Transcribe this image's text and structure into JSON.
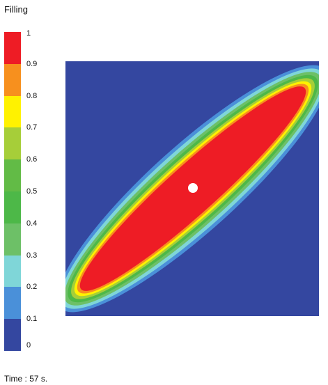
{
  "legend": {
    "title": "Filling",
    "levels": [
      {
        "label": "1",
        "color": "#ee1c25"
      },
      {
        "label": "0.9",
        "color": "#f7901e"
      },
      {
        "label": "0.8",
        "color": "#fff200"
      },
      {
        "label": "0.7",
        "color": "#a6ce39"
      },
      {
        "label": "0.6",
        "color": "#62bb46"
      },
      {
        "label": "0.5",
        "color": "#4db848"
      },
      {
        "label": "0.4",
        "color": "#6dc067"
      },
      {
        "label": "0.3",
        "color": "#7fd6d8"
      },
      {
        "label": "0.2",
        "color": "#4a90d9"
      },
      {
        "label": "0.1",
        "color": "#3447a0"
      },
      {
        "label": "0",
        "color": ""
      }
    ]
  },
  "status": {
    "time_text": "Time : 57 s."
  },
  "field": {
    "background_color": "#3447a0",
    "fill_color": "#ee1c25",
    "injection_point_color": "#ffffff"
  }
}
